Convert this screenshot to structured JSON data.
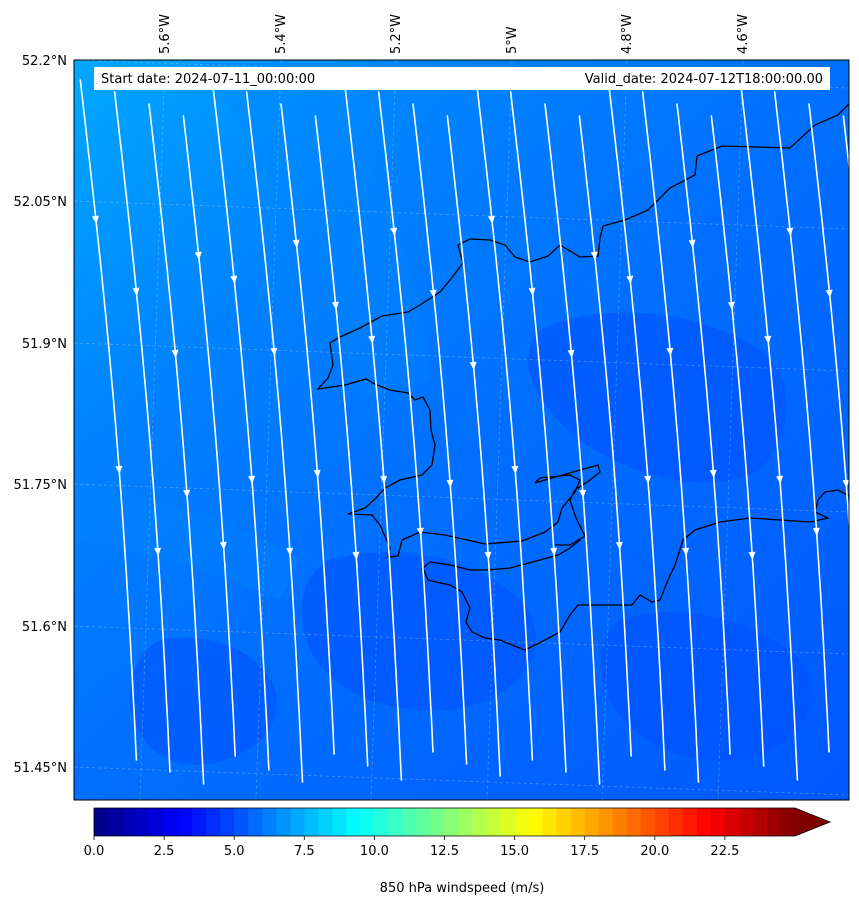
{
  "header": {
    "start_date": "Start date: 2024-07-11_00:00:00",
    "valid_date": "Valid_date: 2024-07-12T18:00:00.00"
  },
  "longitude_labels": [
    "5.6°W",
    "5.4°W",
    "5.2°W",
    "5°W",
    "4.8°W",
    "4.6°W"
  ],
  "latitude_labels": [
    "52.2°N",
    "52.05°N",
    "51.9°N",
    "51.75°N",
    "51.6°N",
    "51.45°N"
  ],
  "colorbar": {
    "label": "850 hPa windspeed (m/s)",
    "min": 0,
    "max": 25,
    "step": 0.5,
    "extend": "max",
    "colormap": "jet",
    "tick_values": [
      0.0,
      2.5,
      5.0,
      7.5,
      10.0,
      12.5,
      15.0,
      17.5,
      20.0,
      22.5
    ],
    "tick_labels": [
      "0.0",
      "2.5",
      "5.0",
      "7.5",
      "10.0",
      "12.5",
      "15.0",
      "17.5",
      "20.0",
      "22.5"
    ]
  },
  "field": {
    "variable": "850 hPa windspeed",
    "units": "m/s",
    "overlay": "streamlines",
    "streamline_color": "#ffffff",
    "coastline_color": "#000000",
    "gridlines": "dashed"
  }
}
